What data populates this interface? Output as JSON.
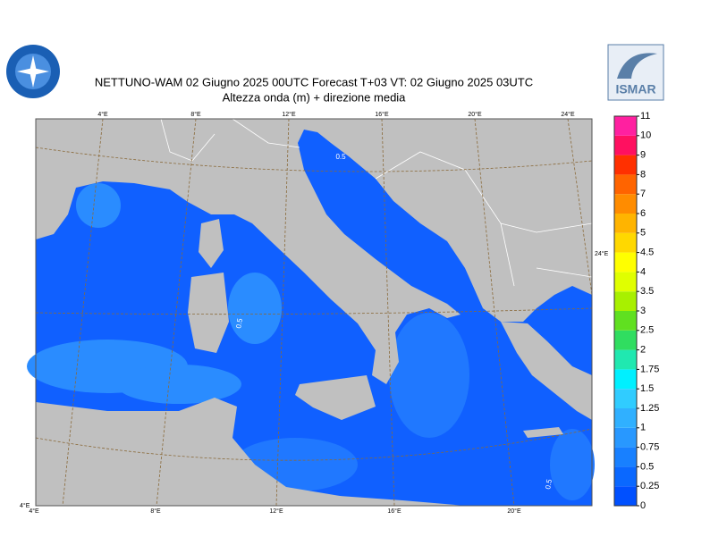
{
  "header": {
    "title": "NETTUNO-WAM  02   Giugno  2025 00UTC Forecast T+03 VT: 02   Giugno  2025 03UTC",
    "subtitle": "Altezza onda (m) + direzione media",
    "logo_text": "ISMAR"
  },
  "map": {
    "top_labels": [
      "4°E",
      "8°E",
      "12°E",
      "16°E",
      "20°E",
      "24°E"
    ],
    "bottom_labels": [
      "4°E",
      "8°E",
      "12°E",
      "16°E",
      "20°E"
    ],
    "right_label": "24°E",
    "corner_label": "4°E",
    "contour_labels": [
      "0.5",
      "0.5",
      "0.5"
    ]
  },
  "colorbar": {
    "labels": [
      0,
      0.25,
      0.5,
      0.75,
      1,
      1.25,
      1.5,
      1.75,
      2,
      2.5,
      3,
      3.5,
      4,
      4.5,
      5,
      6,
      7,
      8,
      9,
      10,
      11
    ],
    "colors": [
      "#0050ff",
      "#0a68ff",
      "#1880ff",
      "#2898ff",
      "#30b0ff",
      "#30ccff",
      "#00f0ff",
      "#20e8b0",
      "#30dd60",
      "#60e020",
      "#a8f000",
      "#e0ff00",
      "#ffff00",
      "#ffd800",
      "#ffb400",
      "#ff8c00",
      "#ff6400",
      "#ff3000",
      "#ff1060",
      "#ff20a0"
    ]
  }
}
